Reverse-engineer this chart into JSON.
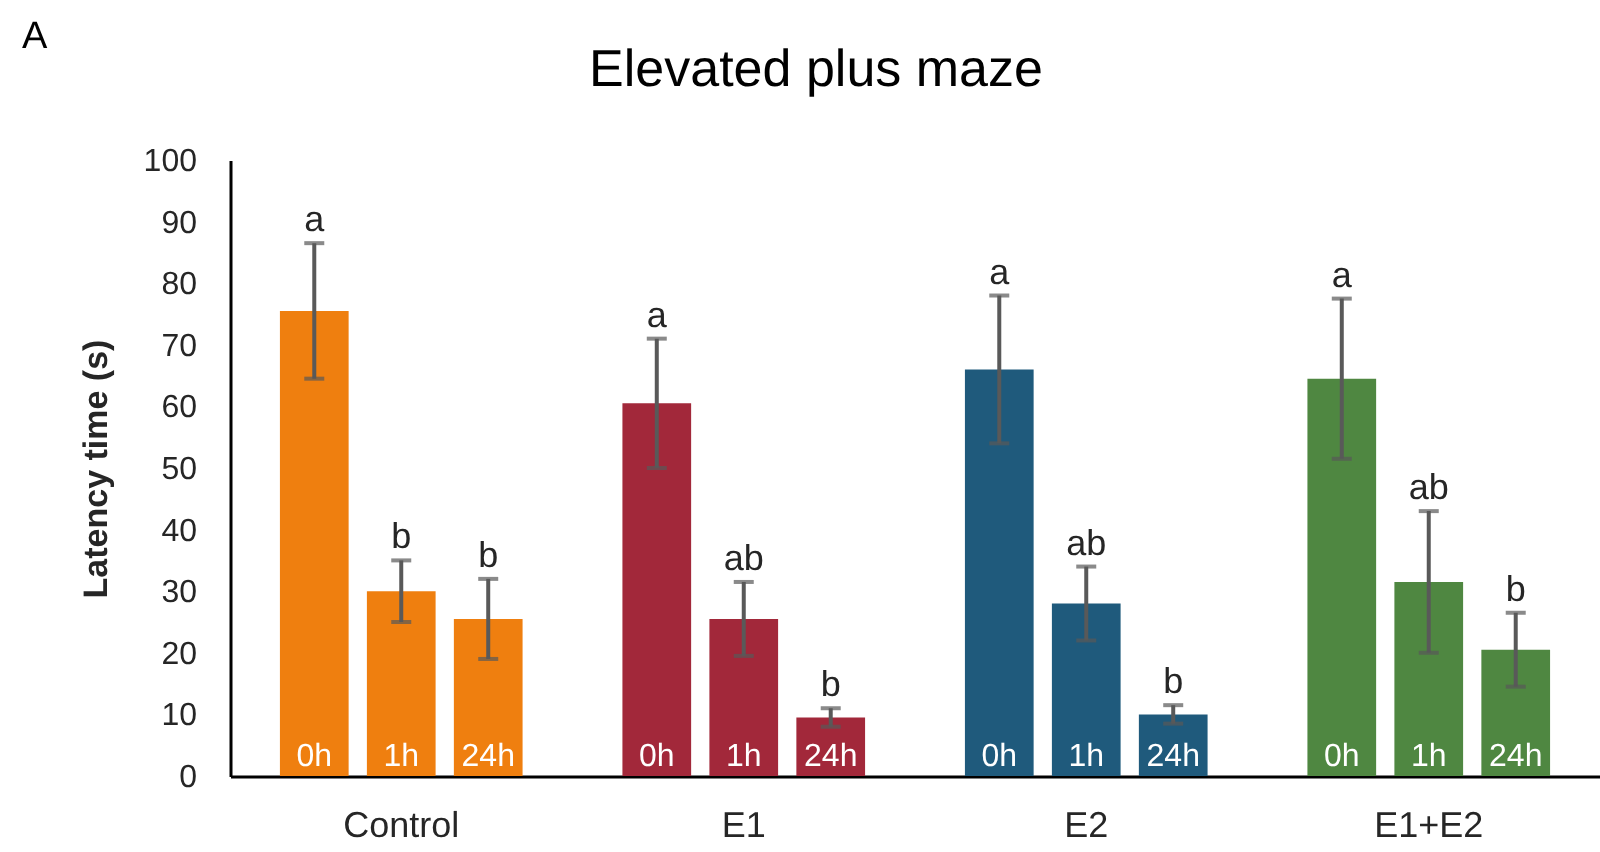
{
  "chart_data": {
    "type": "bar",
    "title": "Elevated plus maze",
    "ylabel": "Latency time (s)",
    "categories": [
      "Control",
      "E1",
      "E2",
      "E1+E2"
    ],
    "series": [
      {
        "name": "0h",
        "colors": [
          "#ef7f0f",
          "#a2283a",
          "#1f5a7c",
          "#4f8741"
        ],
        "values": [
          75.5,
          60.5,
          66,
          64.5
        ],
        "errors": [
          11,
          10.5,
          12,
          13
        ]
      },
      {
        "name": "1h",
        "colors": [
          "#ef7f0f",
          "#a2283a",
          "#1f5a7c",
          "#4f8741"
        ],
        "values": [
          30,
          25.5,
          28,
          31.5
        ],
        "errors": [
          5,
          6,
          6,
          11.5
        ]
      },
      {
        "name": "24h",
        "colors": [
          "#ef7f0f",
          "#a2283a",
          "#1f5a7c",
          "#4f8741"
        ],
        "values": [
          25.5,
          9.5,
          10,
          20.5
        ],
        "errors": [
          6.5,
          1.5,
          1.5,
          6
        ]
      }
    ],
    "ylim": [
      0,
      100
    ],
    "yticks": [
      0,
      10,
      20,
      30,
      40,
      50,
      60,
      70,
      80,
      90,
      100
    ],
    "annotations": [
      "A",
      "a",
      "b",
      "b",
      "a",
      "ab",
      "b",
      "a",
      "ab",
      "b",
      "a",
      "ab",
      "b"
    ]
  }
}
